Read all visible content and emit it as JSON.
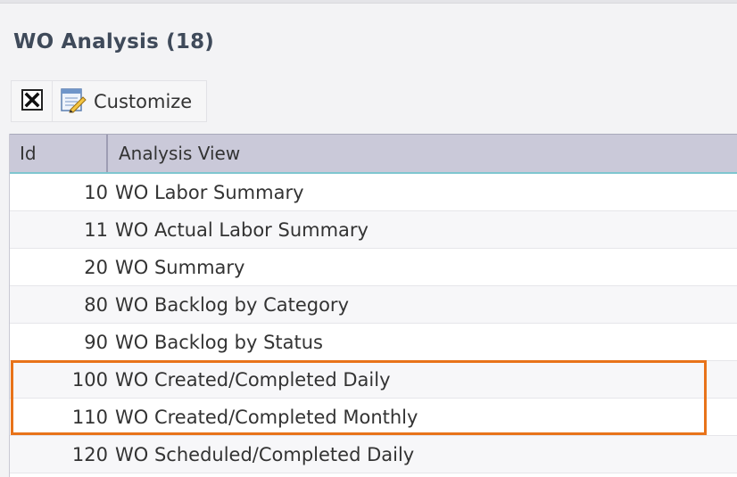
{
  "panel": {
    "title": "WO Analysis (18)"
  },
  "toolbar": {
    "close_icon": "close-icon",
    "customize_icon": "customize-edit-icon",
    "customize_label": "Customize"
  },
  "grid": {
    "columns": [
      "Id",
      "Analysis View"
    ],
    "rows": [
      {
        "id": "10",
        "view": "WO Labor Summary"
      },
      {
        "id": "11",
        "view": "WO Actual Labor Summary"
      },
      {
        "id": "20",
        "view": "WO Summary"
      },
      {
        "id": "80",
        "view": "WO Backlog by Category"
      },
      {
        "id": "90",
        "view": "WO Backlog by Status"
      },
      {
        "id": "100",
        "view": "WO Created/Completed Daily"
      },
      {
        "id": "110",
        "view": "WO Created/Completed Monthly"
      },
      {
        "id": "120",
        "view": "WO Scheduled/Completed Daily"
      }
    ]
  },
  "colors": {
    "header_bg": "#cac9d9",
    "highlight": "#e8731a"
  }
}
